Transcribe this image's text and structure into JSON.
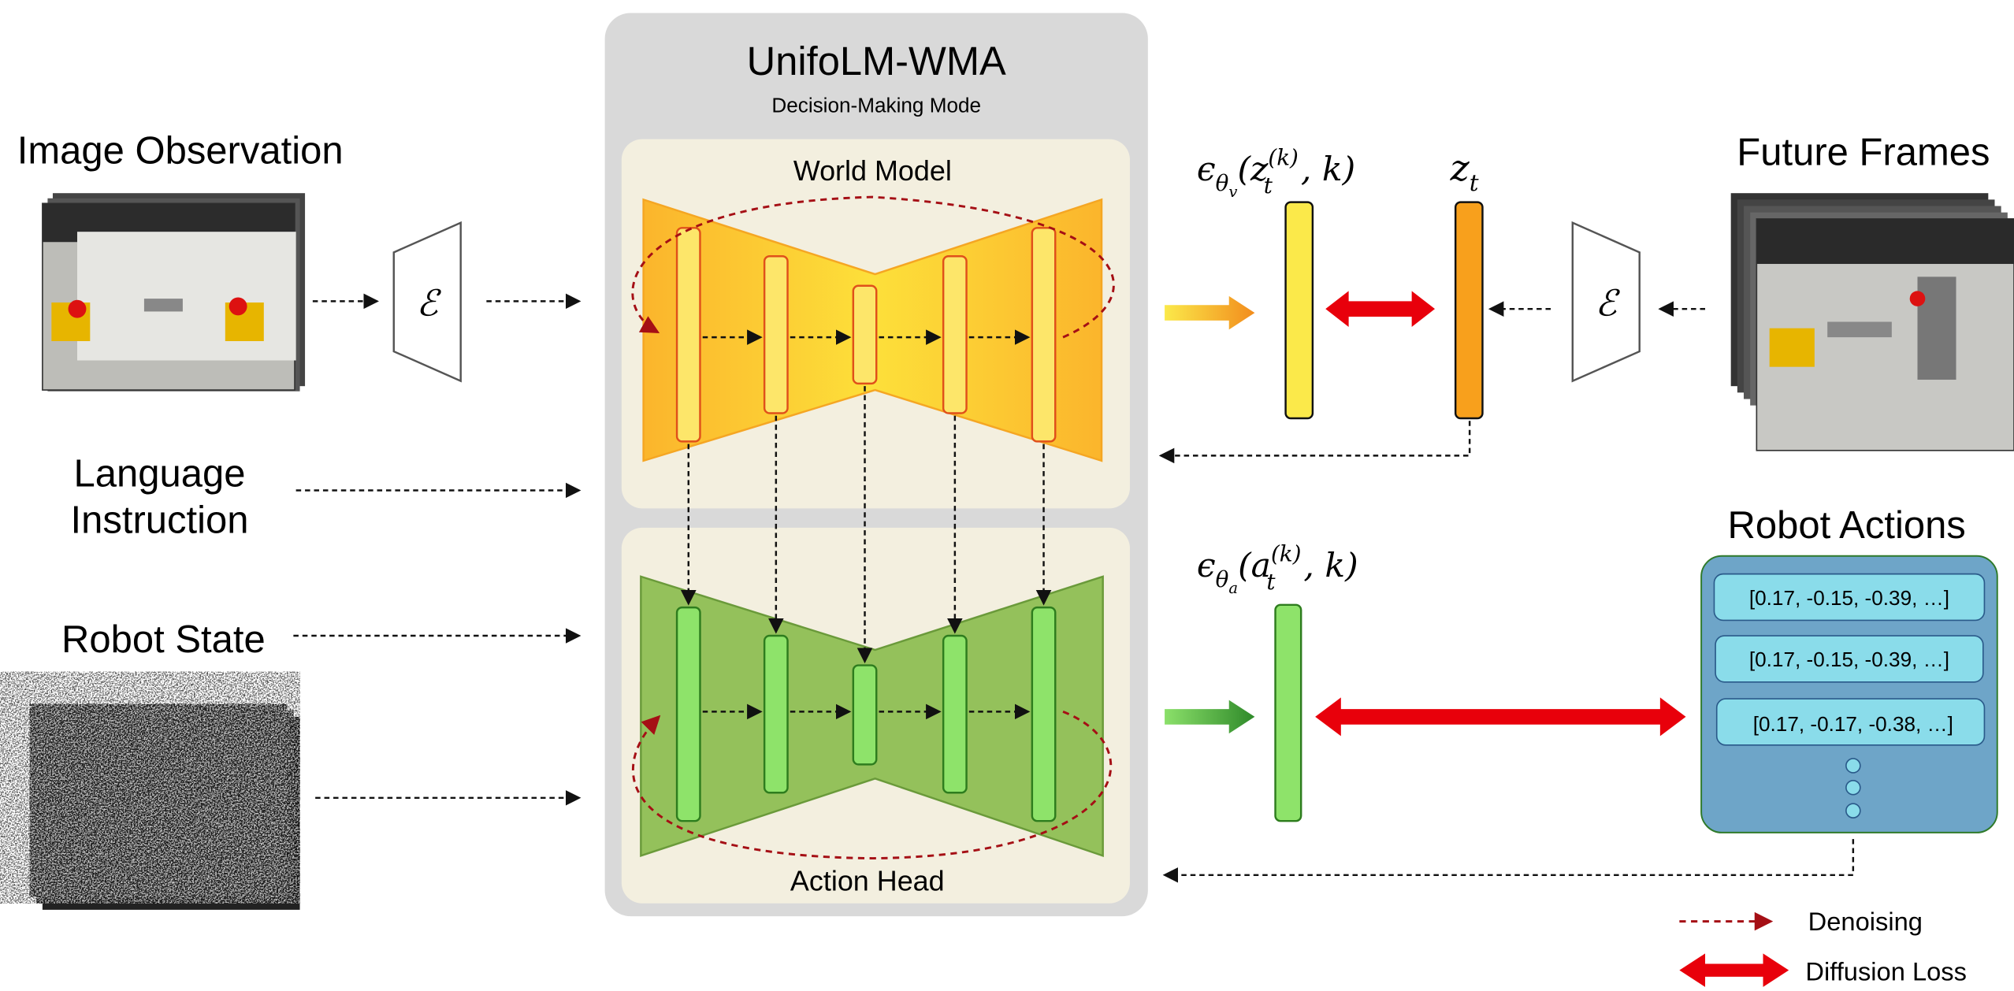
{
  "title": "UnifoLM-WMA",
  "subtitle": "Decision-Making Mode",
  "world_model_label": "World Model",
  "action_head_label": "Action Head",
  "inputs": {
    "image_observation": "Image Observation",
    "language_instruction_line1": "Language",
    "language_instruction_line2": "Instruction",
    "robot_state": "Robot State"
  },
  "encoder_symbol": "ℰ",
  "future_frames": "Future Frames",
  "equations": {
    "video_noise_pred": {
      "eps": "ϵ",
      "sub": "θ",
      "subsub": "v",
      "open": "(z",
      "sup": "(k)",
      "t": "t",
      "close": ", k)"
    },
    "latent": {
      "z": "z",
      "t": "t"
    },
    "action_noise_pred": {
      "eps": "ϵ",
      "sub": "θ",
      "subsub": "a",
      "open": "(a",
      "sup": "(k)",
      "t": "t",
      "close": ", k)"
    }
  },
  "robot_actions": {
    "title": "Robot Actions",
    "rows": [
      "[0.17, -0.15, -0.39, …]",
      "[0.17, -0.15, -0.39, …]",
      "[0.17, -0.17, -0.38, …]"
    ]
  },
  "legend": {
    "denoising": "Denoising",
    "diffusion_loss": "Diffusion Loss"
  },
  "colors": {
    "panel": "#d9d9d9",
    "inner": "#f3efdf",
    "world": "#fdd22b",
    "action": "#94c15b",
    "loss": "#e8000b",
    "denoise": "#a50f15",
    "actions_box": "#6ea5c8",
    "action_row": "#8adcea"
  }
}
